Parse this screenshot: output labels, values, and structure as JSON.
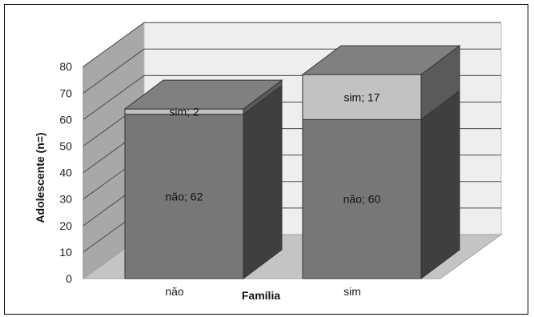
{
  "chart_data": {
    "type": "bar",
    "stacked": true,
    "three_d": true,
    "categories": [
      "não",
      "sim"
    ],
    "series": [
      {
        "name": "não",
        "values": [
          62,
          60
        ]
      },
      {
        "name": "sim",
        "values": [
          2,
          17
        ]
      }
    ],
    "data_labels": [
      [
        "não; 62",
        "não; 60"
      ],
      [
        "sim; 2",
        "sim; 17"
      ]
    ],
    "xlabel": "Família",
    "ylabel": "Adolescente (n=)",
    "ylim": [
      0,
      80
    ],
    "yticks": [
      0,
      10,
      20,
      30,
      40,
      50,
      60,
      70,
      80
    ],
    "grid": true,
    "legend": "none",
    "colors": {
      "no_front": "#777777",
      "no_side": "#3f3f3f",
      "no_top": "#9a9a9a",
      "yes_front": "#c2c2c2",
      "yes_side": "#5a5a5a",
      "yes_top": "#808080",
      "wall": "#eeeeee",
      "floor": "#c4c4c4"
    }
  }
}
